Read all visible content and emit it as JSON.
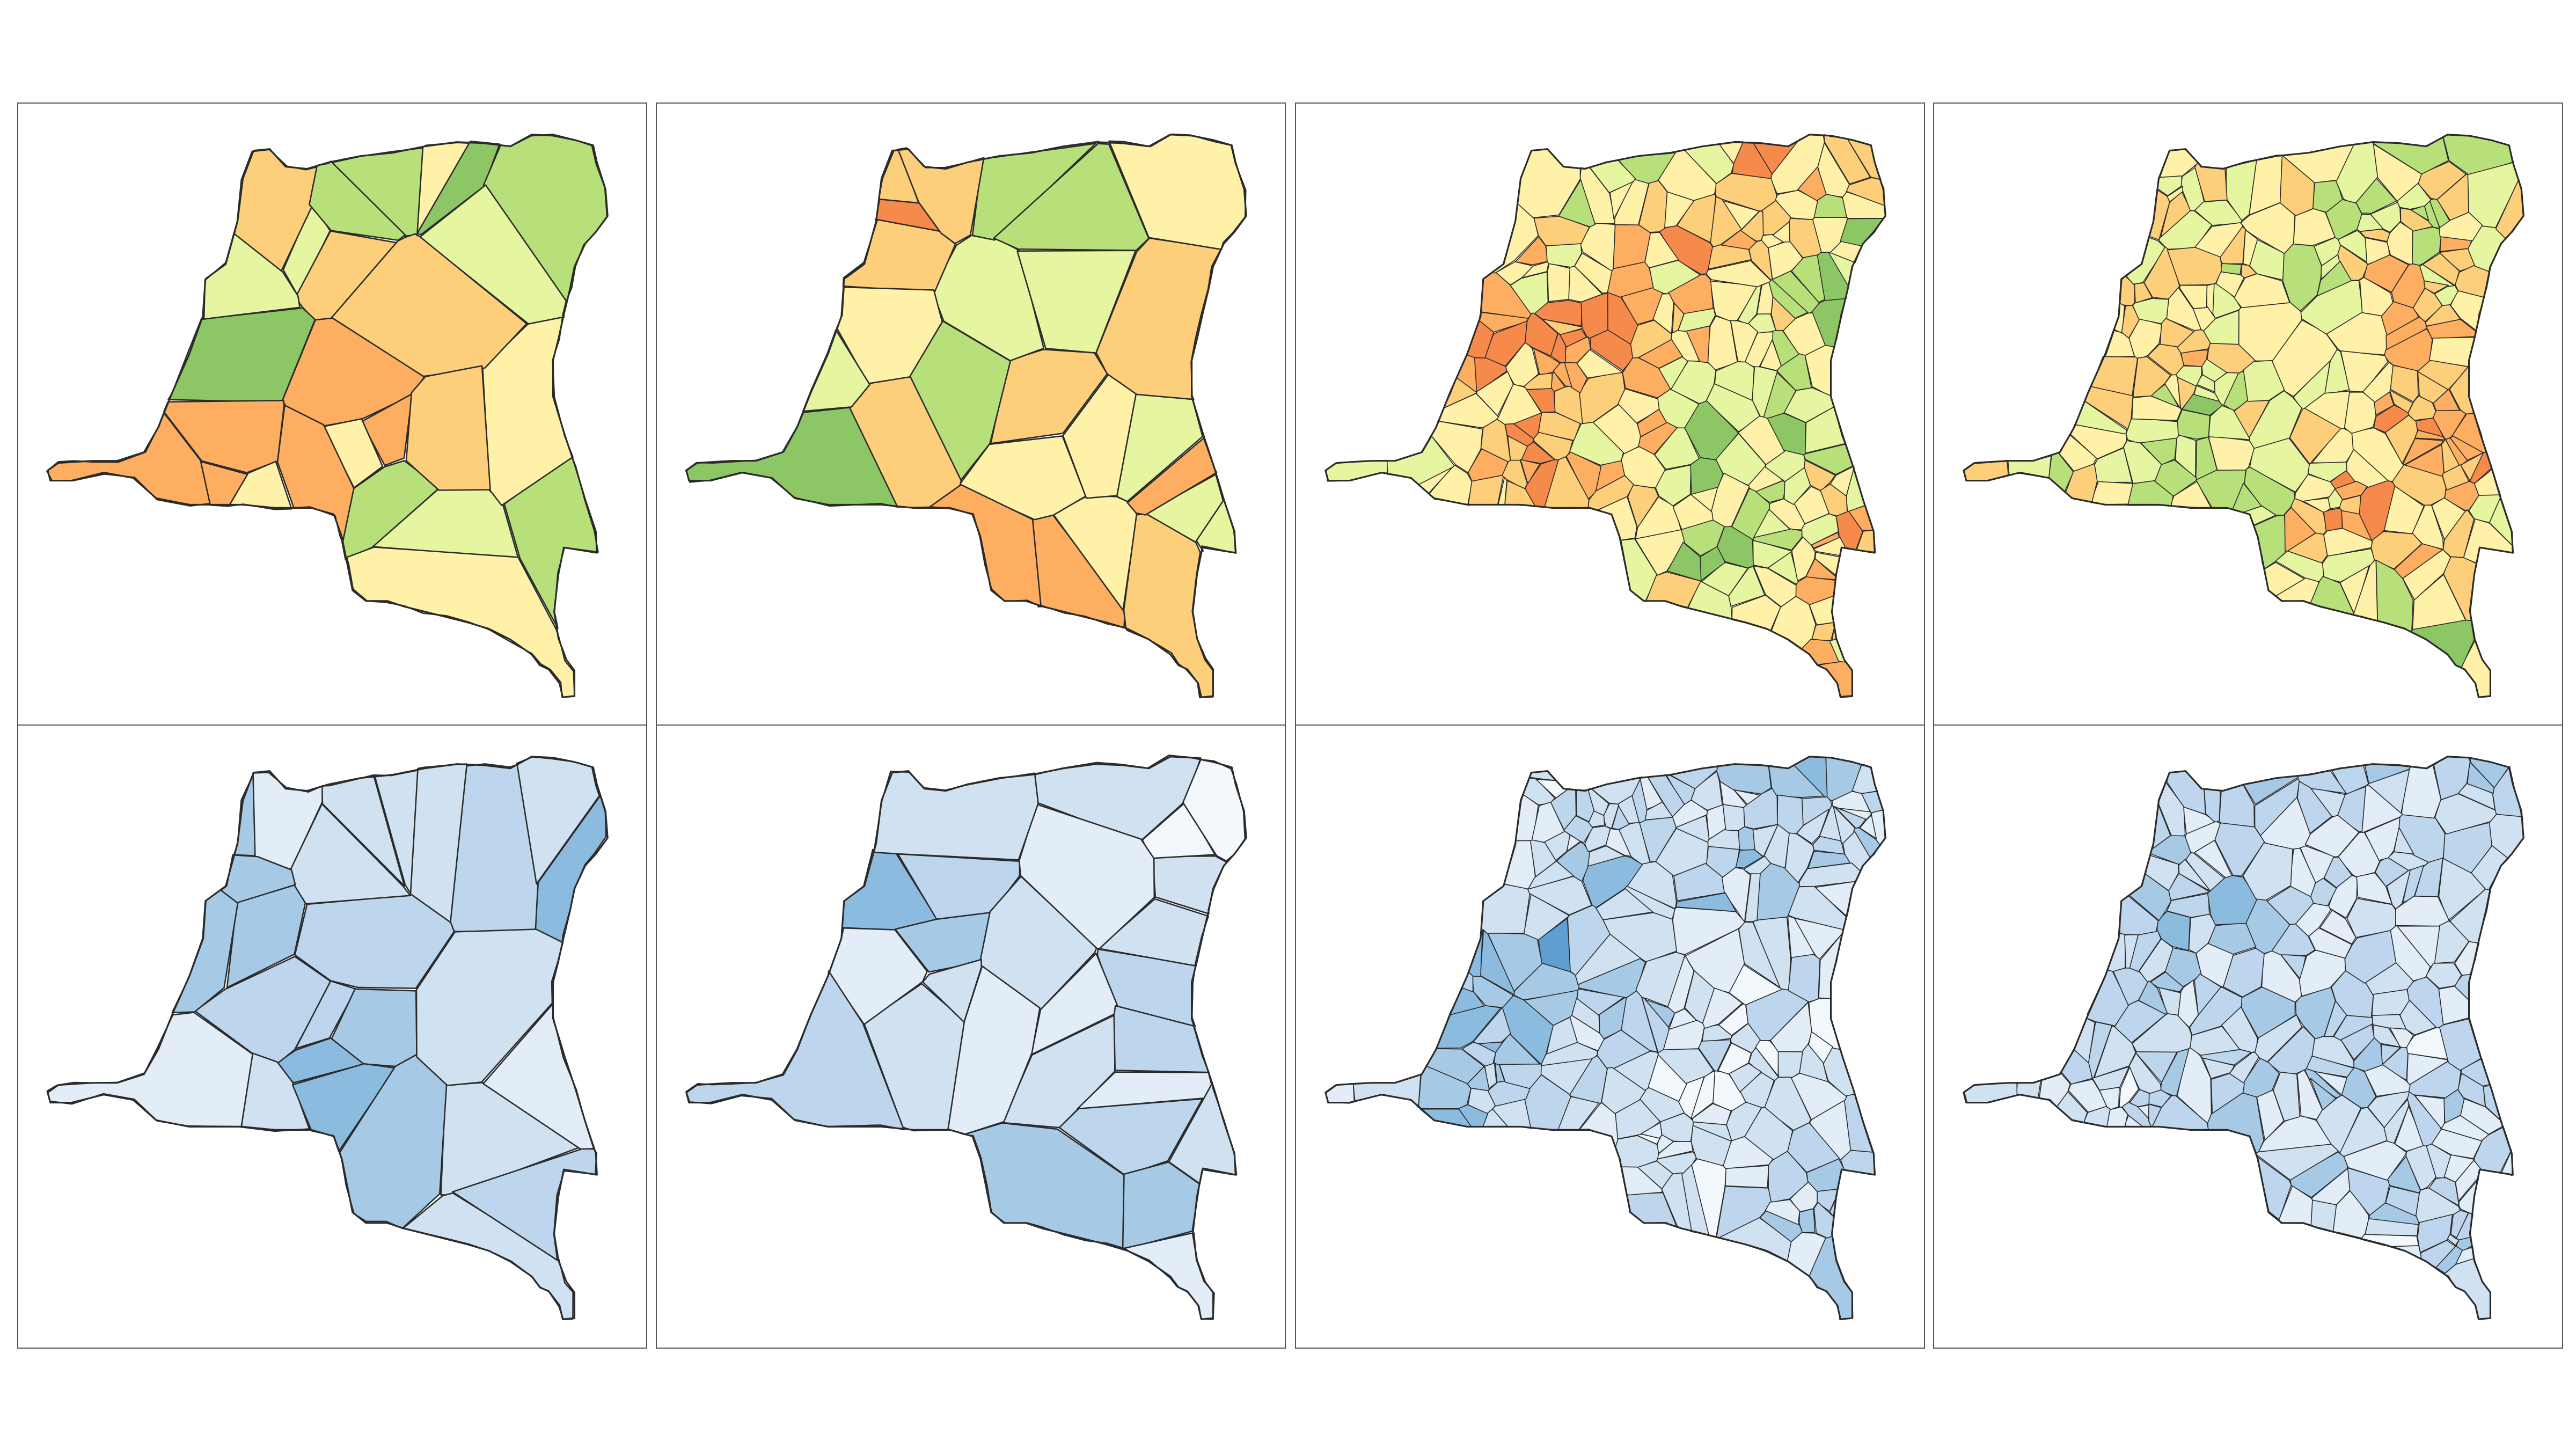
{
  "figure": {
    "rows": 2,
    "cols": 4,
    "panels": [
      {
        "id": "p1",
        "row": 0,
        "col": 0,
        "palette": "diverging",
        "detail": "province",
        "seed": 3
      },
      {
        "id": "p2",
        "row": 0,
        "col": 1,
        "palette": "diverging",
        "detail": "province",
        "seed": 11
      },
      {
        "id": "p3",
        "row": 0,
        "col": 2,
        "palette": "diverging",
        "detail": "health-zone",
        "seed": 23
      },
      {
        "id": "p4",
        "row": 0,
        "col": 3,
        "palette": "diverging",
        "detail": "health-zone",
        "seed": 41
      },
      {
        "id": "p5",
        "row": 1,
        "col": 0,
        "palette": "blues",
        "detail": "province",
        "seed": 7
      },
      {
        "id": "p6",
        "row": 1,
        "col": 1,
        "palette": "blues",
        "detail": "province",
        "seed": 19
      },
      {
        "id": "p7",
        "row": 1,
        "col": 2,
        "palette": "blues",
        "detail": "health-zone",
        "seed": 29
      },
      {
        "id": "p8",
        "row": 1,
        "col": 3,
        "palette": "blues",
        "detail": "health-zone",
        "seed": 53
      }
    ]
  },
  "palettes": {
    "diverging": [
      "#1a9641",
      "#4daf4a",
      "#8cc665",
      "#b8e07a",
      "#e6f5a0",
      "#fff2a8",
      "#fdcf7a",
      "#fdae61",
      "#f58a4b",
      "#e0472f",
      "#c0101f"
    ],
    "blues": [
      "#f3f8fd",
      "#e2edf8",
      "#d0e1f2",
      "#bdd6ed",
      "#a6cae5",
      "#8bbbdf",
      "#5d9fd0",
      "#3a84c3"
    ]
  },
  "colors": {
    "border": "#555555",
    "stroke": "#2b2b2b",
    "background": "#ffffff"
  }
}
